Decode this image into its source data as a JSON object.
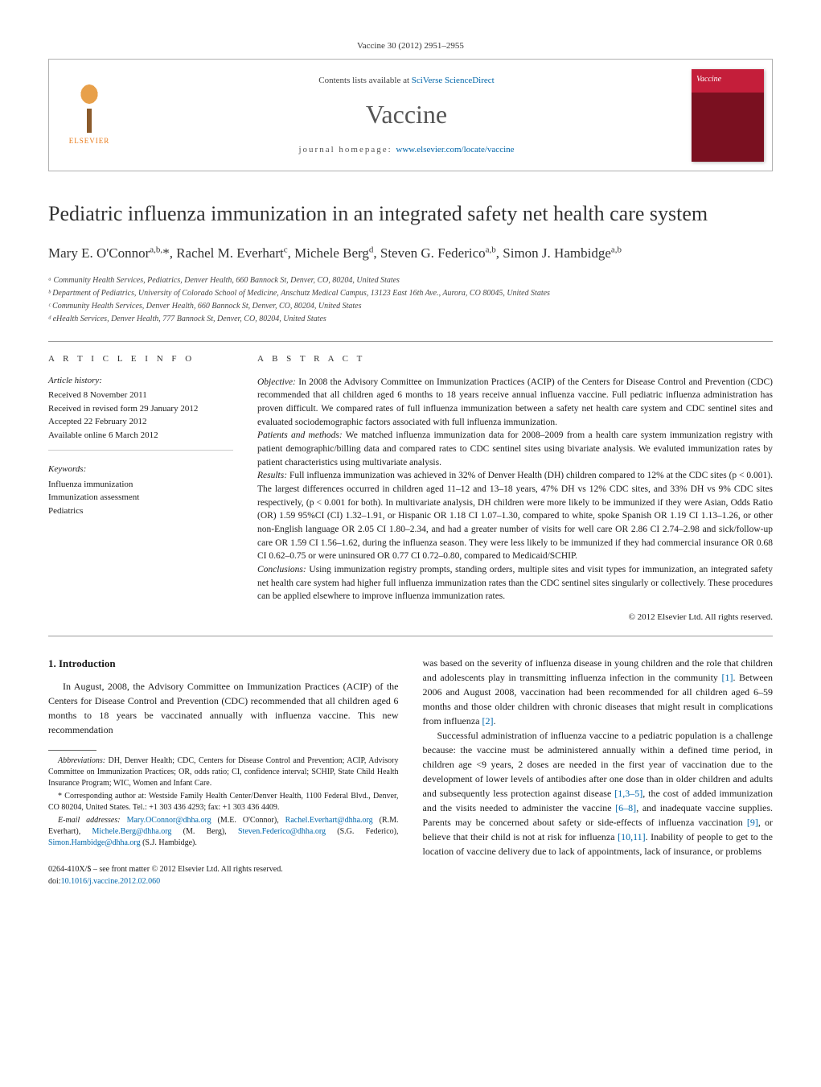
{
  "citation": "Vaccine 30 (2012) 2951–2955",
  "header": {
    "contents_prefix": "Contents lists available at ",
    "contents_link": "SciVerse ScienceDirect",
    "journal": "Vaccine",
    "homepage_prefix": "journal homepage: ",
    "homepage_link": "www.elsevier.com/locate/vaccine",
    "elsevier_label": "ELSEVIER",
    "cover_label": "Vaccine"
  },
  "title": "Pediatric influenza immunization in an integrated safety net health care system",
  "authors_html": "Mary E. O'Connor<sup>a,b,</sup>*, Rachel M. Everhart<sup>c</sup>, Michele Berg<sup>d</sup>, Steven G. Federico<sup>a,b</sup>, Simon J. Hambidge<sup>a,b</sup>",
  "affiliations": [
    "ᵃ Community Health Services, Pediatrics, Denver Health, 660 Bannock St, Denver, CO, 80204, United States",
    "ᵇ Department of Pediatrics, University of Colorado School of Medicine, Anschutz Medical Campus, 13123 East 16th Ave., Aurora, CO 80045, United States",
    "ᶜ Community Health Services, Denver Health, 660 Bannock St, Denver, CO, 80204, United States",
    "ᵈ eHealth Services, Denver Health, 777 Bannock St, Denver, CO, 80204, United States"
  ],
  "info": {
    "heading": "A R T I C L E   I N F O",
    "history_label": "Article history:",
    "history": [
      "Received 8 November 2011",
      "Received in revised form 29 January 2012",
      "Accepted 22 February 2012",
      "Available online 6 March 2012"
    ],
    "keywords_label": "Keywords:",
    "keywords": [
      "Influenza immunization",
      "Immunization assessment",
      "Pediatrics"
    ]
  },
  "abstract": {
    "heading": "A B S T R A C T",
    "objective_label": "Objective:",
    "objective": " In 2008 the Advisory Committee on Immunization Practices (ACIP) of the Centers for Disease Control and Prevention (CDC) recommended that all children aged 6 months to 18 years receive annual influenza vaccine. Full pediatric influenza administration has proven difficult. We compared rates of full influenza immunization between a safety net health care system and CDC sentinel sites and evaluated sociodemographic factors associated with full influenza immunization.",
    "methods_label": "Patients and methods:",
    "methods": " We matched influenza immunization data for 2008–2009 from a health care system immunization registry with patient demographic/billing data and compared rates to CDC sentinel sites using bivariate analysis. We evaluted immunization rates by patient characteristics using multivariate analysis.",
    "results_label": "Results:",
    "results": " Full influenza immunization was achieved in 32% of Denver Health (DH) children compared to 12% at the CDC sites (p < 0.001). The largest differences occurred in children aged 11–12 and 13–18 years, 47% DH vs 12% CDC sites, and 33% DH vs 9% CDC sites respectively, (p < 0.001 for both). In multivariate analysis, DH children were more likely to be immunized if they were Asian, Odds Ratio (OR) 1.59 95%CI (CI) 1.32–1.91, or Hispanic OR 1.18 CI 1.07–1.30, compared to white, spoke Spanish OR 1.19 CI 1.13–1.26, or other non-English language OR 2.05 CI 1.80–2.34, and had a greater number of visits for well care OR 2.86 CI 2.74–2.98 and sick/follow-up care OR 1.59 CI 1.56–1.62, during the influenza season. They were less likely to be immunized if they had commercial insurance OR 0.68 CI 0.62–0.75 or were uninsured OR 0.77 CI 0.72–0.80, compared to Medicaid/SCHIP.",
    "conclusions_label": "Conclusions:",
    "conclusions": " Using immunization registry prompts, standing orders, multiple sites and visit types for immunization, an integrated safety net health care system had higher full influenza immunization rates than the CDC sentinel sites singularly or collectively. These procedures can be applied elsewhere to improve influenza immunization rates.",
    "copyright": "© 2012 Elsevier Ltd. All rights reserved."
  },
  "body": {
    "section_heading": "1.  Introduction",
    "col1_para1": "In August, 2008, the Advisory Committee on Immunization Practices (ACIP) of the Centers for Disease Control and Prevention (CDC) recommended that all children aged 6 months to 18 years be vaccinated annually with influenza vaccine. This new recommendation",
    "col2_para1_pre": "was based on the severity of influenza disease in young children and the role that children and adolescents play in transmitting influenza infection in the community ",
    "col2_para1_ref1": "[1]",
    "col2_para1_mid": ". Between 2006 and August 2008, vaccination had been recommended for all children aged 6–59 months and those older children with chronic diseases that might result in complications from influenza ",
    "col2_para1_ref2": "[2]",
    "col2_para1_end": ".",
    "col2_para2_pre": "Successful administration of influenza vaccine to a pediatric population is a challenge because: the vaccine must be administered annually within a defined time period, in children age <9 years, 2 doses are needed in the first year of vaccination due to the development of lower levels of antibodies after one dose than in older children and adults and subsequently less protection against disease ",
    "col2_para2_ref1": "[1,3–5]",
    "col2_para2_mid1": ", the cost of added immunization and the visits needed to administer the vaccine ",
    "col2_para2_ref2": "[6–8]",
    "col2_para2_mid2": ", and inadequate vaccine supplies. Parents may be concerned about safety or side-effects of influenza vaccination ",
    "col2_para2_ref3": "[9]",
    "col2_para2_mid3": ", or believe that their child is not at risk for influenza ",
    "col2_para2_ref4": "[10,11]",
    "col2_para2_end": ". Inability of people to get to the location of vaccine delivery due to lack of appointments, lack of insurance, or problems"
  },
  "footnotes": {
    "abbrev_label": "Abbreviations:",
    "abbrev": "  DH, Denver Health; CDC, Centers for Disease Control and Prevention; ACIP, Advisory Committee on Immunization Practices; OR, odds ratio; CI, confidence interval; SCHIP, State Child Health Insurance Program; WIC, Women and Infant Care.",
    "corresponding": "* Corresponding author at: Westside Family Health Center/Denver Health, 1100 Federal Blvd., Denver, CO 80204, United States. Tel.: +1 303 436 4293; fax: +1 303 436 4409.",
    "emails_label": "E-mail addresses:",
    "emails": [
      {
        "addr": "Mary.OConnor@dhha.org",
        "who": " (M.E. O'Connor), "
      },
      {
        "addr": "Rachel.Everhart@dhha.org",
        "who": " (R.M. Everhart), "
      },
      {
        "addr": "Michele.Berg@dhha.org",
        "who": " (M. Berg), "
      },
      {
        "addr": "Steven.Federico@dhha.org",
        "who": " (S.G. Federico), "
      },
      {
        "addr": "Simon.Hambidge@dhha.org",
        "who": " (S.J. Hambidge)."
      }
    ]
  },
  "doi": {
    "line1": "0264-410X/$ – see front matter © 2012 Elsevier Ltd. All rights reserved.",
    "prefix": "doi:",
    "link": "10.1016/j.vaccine.2012.02.060"
  },
  "colors": {
    "link": "#0066aa",
    "rule": "#999999",
    "cover_top": "#c41e3a",
    "cover_bottom": "#7a1020",
    "elsevier_orange": "#e8a04a"
  }
}
